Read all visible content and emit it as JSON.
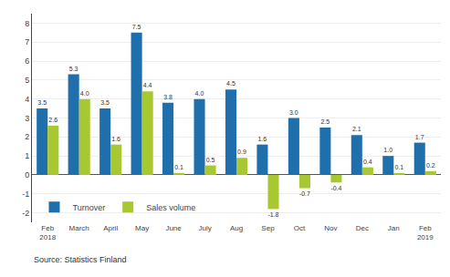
{
  "chart_data": {
    "type": "bar",
    "categories": [
      "Feb\n2018",
      "March",
      "April",
      "May",
      "June",
      "July",
      "Aug",
      "Sep",
      "Oct",
      "Nov",
      "Dec",
      "Jan",
      "Feb\n2019"
    ],
    "series": [
      {
        "name": "Turnover",
        "color": "#1f6fad",
        "values": [
          3.5,
          5.3,
          3.5,
          7.5,
          3.8,
          4.0,
          4.5,
          1.6,
          3.0,
          2.5,
          2.1,
          1.0,
          1.7
        ],
        "value_labels": [
          "3.5",
          "5.3",
          "3.5",
          "7.5",
          "3.8",
          "4.0",
          "4.5",
          "1.6",
          "3.0",
          "2.5",
          "2.1",
          "1.0",
          "1.7"
        ]
      },
      {
        "name": "Sales volume",
        "color": "#a8c832",
        "values": [
          2.6,
          4.0,
          1.6,
          4.4,
          0.1,
          0.5,
          0.9,
          -1.8,
          -0.7,
          -0.4,
          0.4,
          0.1,
          0.2
        ],
        "value_labels": [
          "2.6",
          "4.0",
          "1.6",
          "4.4",
          "0.1",
          "0.5",
          "0.9",
          "-1.8",
          "-0.7",
          "-0.4",
          "0.4",
          "0.1",
          "0.2"
        ]
      }
    ],
    "ylim": [
      -2.5,
      8.5
    ],
    "yticks": [
      -2,
      -1,
      0,
      1,
      2,
      3,
      4,
      5,
      6,
      7,
      8
    ],
    "grid": true,
    "legend": "lower left",
    "data_labels": true,
    "annotations": [
      "Source: Statistics Finland"
    ]
  }
}
